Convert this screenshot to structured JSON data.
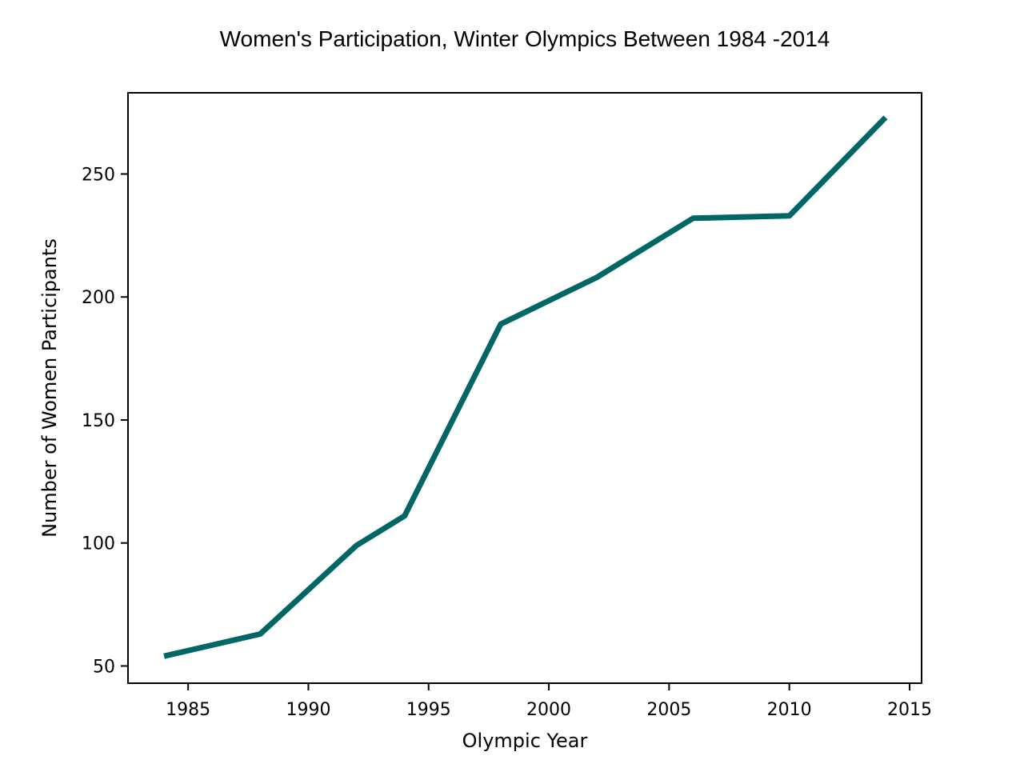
{
  "chart_data": {
    "type": "line",
    "title": "Women's Participation, Winter Olympics Between 1984 -2014",
    "xlabel": "Olympic Year",
    "ylabel": "Number of Women Participants",
    "x": [
      1984,
      1988,
      1992,
      1994,
      1998,
      2002,
      2006,
      2010,
      2014
    ],
    "series": [
      {
        "values": [
          54,
          63,
          99,
          111,
          189,
          208,
          232,
          233,
          273
        ],
        "color": "#006666"
      }
    ],
    "xlim": [
      1982.5,
      2015.5
    ],
    "ylim": [
      43,
      283
    ],
    "xticks": [
      1985,
      1990,
      1995,
      2000,
      2005,
      2010,
      2015
    ],
    "yticks": [
      50,
      100,
      150,
      200,
      250
    ],
    "grid": false,
    "legend": "none"
  }
}
